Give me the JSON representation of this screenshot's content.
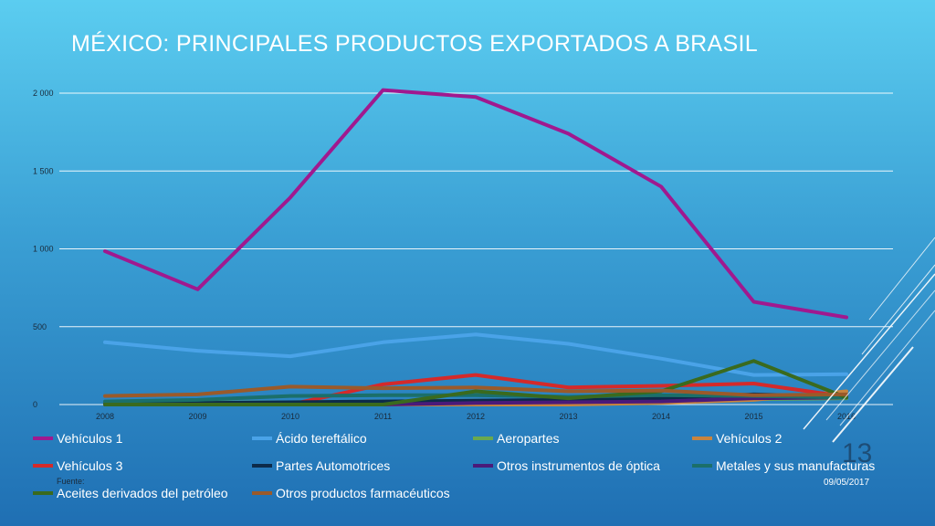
{
  "slide": {
    "title": "MÉXICO: PRINCIPALES PRODUCTOS EXPORTADOS A BRASIL",
    "number": "13",
    "footer_source": "Fuente:",
    "footer_date": "09/05/2017"
  },
  "chart_data": {
    "type": "line",
    "title": "",
    "xlabel": "",
    "ylabel": "",
    "categories": [
      "2008",
      "2009",
      "2010",
      "2011",
      "2012",
      "2013",
      "2014",
      "2015",
      "2016"
    ],
    "y_ticks": [
      "0",
      "500",
      "1 000",
      "1 500",
      "2 000"
    ],
    "ylim": [
      0,
      2000
    ],
    "grid": true,
    "legend_position": "bottom",
    "series": [
      {
        "name": "Vehículos 1",
        "color": "#a0198f",
        "values": [
          985,
          740,
          1330,
          2020,
          1975,
          1740,
          1400,
          660,
          560
        ]
      },
      {
        "name": "Ácido tereftálico",
        "color": "#4aa3e8",
        "values": [
          400,
          345,
          310,
          400,
          450,
          390,
          295,
          190,
          195
        ]
      },
      {
        "name": "Aeropartes",
        "color": "#6aa84f",
        "values": [
          10,
          12,
          15,
          20,
          25,
          22,
          30,
          35,
          40
        ]
      },
      {
        "name": "Vehículos 2",
        "color": "#c8843e",
        "values": [
          0,
          0,
          0,
          0,
          0,
          0,
          10,
          30,
          85
        ]
      },
      {
        "name": "Vehículos 3",
        "color": "#d42a2a",
        "values": [
          0,
          0,
          0,
          130,
          190,
          110,
          120,
          135,
          50
        ]
      },
      {
        "name": "Partes Automotrices",
        "color": "#0d2b4a",
        "values": [
          5,
          10,
          15,
          20,
          25,
          30,
          40,
          65,
          50
        ]
      },
      {
        "name": "Otros instrumentos de óptica",
        "color": "#4a1a7a",
        "values": [
          0,
          0,
          0,
          0,
          10,
          15,
          20,
          40,
          45
        ]
      },
      {
        "name": "Metales y sus manufacturas",
        "color": "#1b6f6a",
        "values": [
          20,
          30,
          55,
          60,
          60,
          50,
          60,
          55,
          45
        ]
      },
      {
        "name": "Aceites derivados del petróleo",
        "color": "#3a6a1e",
        "values": [
          0,
          0,
          0,
          0,
          85,
          40,
          85,
          280,
          45
        ]
      },
      {
        "name": "Otros productos farmacéuticos",
        "color": "#9a5a2a",
        "values": [
          55,
          65,
          115,
          105,
          110,
          85,
          90,
          60,
          65
        ]
      }
    ]
  }
}
